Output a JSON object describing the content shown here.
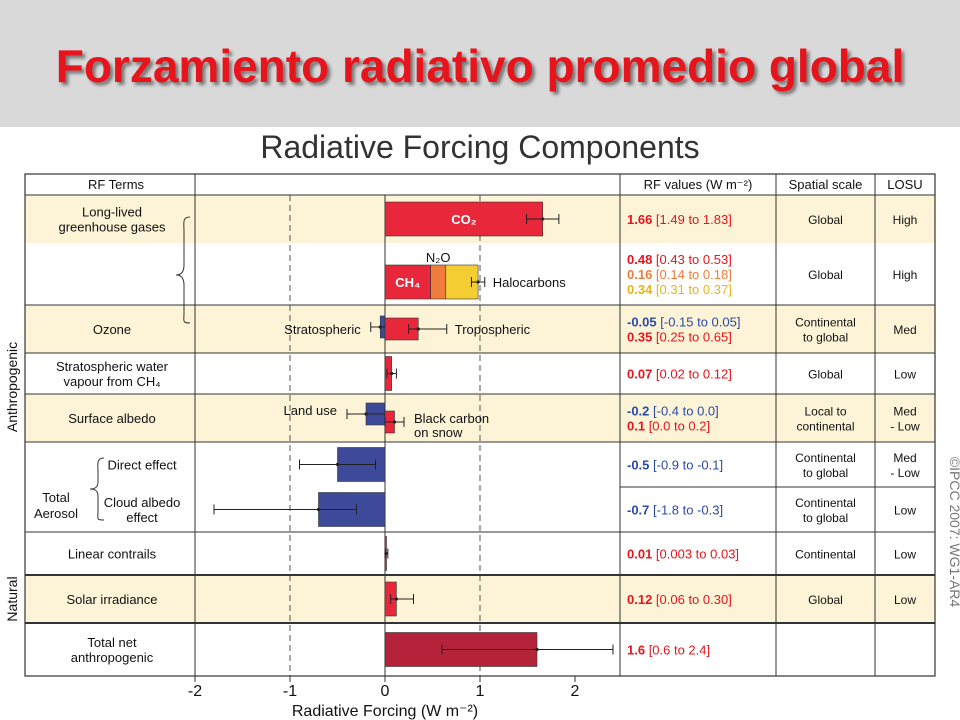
{
  "slide_title": "Forzamiento radiativo promedio global",
  "chart_data": {
    "type": "bar",
    "title": "Radiative Forcing Components",
    "xlabel": "Radiative Forcing (W m⁻²)",
    "xlim": [
      -2,
      2.5
    ],
    "xticks": [
      "-2",
      "-1",
      "0",
      "1",
      "2"
    ],
    "xtick_values": [
      -2,
      -1,
      0,
      1,
      2
    ],
    "vertical_gridlines_at": [
      -1,
      1
    ],
    "column_headers": {
      "terms": "RF Terms",
      "values": "RF values (W m⁻²)",
      "scale": "Spatial scale",
      "losu": "LOSU"
    },
    "group_labels": {
      "anthropogenic": "Anthropogenic",
      "natural": "Natural"
    },
    "credit": "©IPCC  2007: WG1-AR4",
    "rows": [
      {
        "term": [
          "Long-lived",
          "greenhouse gases"
        ],
        "scale": [
          "Global"
        ],
        "losu": [
          "High"
        ],
        "shaded": true
      },
      {
        "term": [],
        "scale": [
          "Global"
        ],
        "losu": [
          "High"
        ],
        "shaded": false
      },
      {
        "term": [
          "Ozone"
        ],
        "scale": [
          "Continental",
          "to global"
        ],
        "losu": [
          "Med"
        ],
        "shaded": true
      },
      {
        "term": [
          "Stratospheric water",
          "vapour from CH₄"
        ],
        "scale": [
          "Global"
        ],
        "losu": [
          "Low"
        ],
        "shaded": false
      },
      {
        "term": [
          "Surface albedo"
        ],
        "scale": [
          "Local to",
          "continental"
        ],
        "losu": [
          "Med",
          "- Low"
        ],
        "shaded": true
      },
      {
        "term": [
          "Direct effect"
        ],
        "scale": [
          "Continental",
          "to global"
        ],
        "losu": [
          "Med",
          "- Low"
        ],
        "shaded": false
      },
      {
        "term": [
          "Cloud albedo",
          "effect"
        ],
        "scale": [
          "Continental",
          "to global"
        ],
        "losu": [
          "Low"
        ],
        "shaded": false
      },
      {
        "term": [
          "Linear contrails"
        ],
        "scale": [
          "Continental"
        ],
        "losu": [
          "Low"
        ],
        "shaded": false
      },
      {
        "term": [
          "Solar irradiance"
        ],
        "scale": [
          "Global"
        ],
        "losu": [
          "Low"
        ],
        "shaded": true
      },
      {
        "term": [
          "Total net",
          "anthropogenic"
        ],
        "scale": [],
        "losu": [],
        "shaded": false
      }
    ],
    "aerosol_label": [
      "Total",
      "Aerosol"
    ],
    "components": [
      {
        "name": "CO₂",
        "row": 0,
        "lane": 0,
        "value": 1.66,
        "low": 1.49,
        "high": 1.83,
        "value_text": "1.66",
        "range_text": "[1.49 to 1.83]",
        "color": "#e8283a",
        "text_color": "#e8141c"
      },
      {
        "name": "CH₄",
        "row": 1,
        "lane": 0,
        "value": 0.48,
        "low": 0.43,
        "high": 0.53,
        "start": 0,
        "value_text": "0.48",
        "range_text": "[0.43 to 0.53]",
        "color": "#e8283a",
        "text_color": "#e8141c"
      },
      {
        "name": "N₂O",
        "row": 1,
        "lane": 0,
        "value": 0.16,
        "low": 0.14,
        "high": 0.18,
        "start": 0.48,
        "value_text": "0.16",
        "range_text": "[0.14 to 0.18]",
        "color": "#ef7c3a",
        "text_color": "#ef7c3a"
      },
      {
        "name": "Halocarbons",
        "row": 1,
        "lane": 0,
        "value": 0.34,
        "low": 0.31,
        "high": 0.37,
        "start": 0.64,
        "error_value": 0.98,
        "error_low": 0.91,
        "error_high": 1.05,
        "value_text": "0.34",
        "range_text": "[0.31 to 0.37]",
        "color": "#f4cd33",
        "text_color": "#e6b417"
      },
      {
        "name": "Stratospheric",
        "row": 2,
        "lane": -1,
        "value": -0.05,
        "low": -0.15,
        "high": 0.05,
        "value_text": "-0.05",
        "range_text": "[-0.15 to 0.05]",
        "color": "#3d4a9a",
        "text_color": "#2b4aa8"
      },
      {
        "name": "Tropospheric",
        "row": 2,
        "lane": 1,
        "value": 0.35,
        "low": 0.25,
        "high": 0.65,
        "value_text": "0.35",
        "range_text": "[0.25 to 0.65]",
        "color": "#e8283a",
        "text_color": "#e8141c"
      },
      {
        "name": "Stratospheric water vapour",
        "row": 3,
        "lane": 0,
        "value": 0.07,
        "low": 0.02,
        "high": 0.12,
        "value_text": "0.07",
        "range_text": "[0.02 to 0.12]",
        "color": "#e8283a",
        "text_color": "#e8141c"
      },
      {
        "name": "Land use",
        "row": 4,
        "lane": -1,
        "value": -0.2,
        "low": -0.4,
        "high": 0.0,
        "value_text": "-0.2",
        "range_text": "[-0.4 to 0.0]",
        "color": "#3d4a9a",
        "text_color": "#2b4aa8"
      },
      {
        "name": "Black carbon on snow",
        "row": 4,
        "lane": 1,
        "value": 0.1,
        "low": 0.0,
        "high": 0.2,
        "value_text": "0.1",
        "range_text": "[0.0 to 0.2]",
        "color": "#e8283a",
        "text_color": "#e8141c"
      },
      {
        "name": "Direct effect",
        "row": 5,
        "lane": 0,
        "value": -0.5,
        "low": -0.9,
        "high": -0.1,
        "value_text": "-0.5",
        "range_text": "[-0.9 to -0.1]",
        "color": "#3d4a9a",
        "text_color": "#2b4aa8"
      },
      {
        "name": "Cloud albedo effect",
        "row": 6,
        "lane": 0,
        "value": -0.7,
        "low": -1.8,
        "high": -0.3,
        "value_text": "-0.7",
        "range_text": "[-1.8 to -0.3]",
        "color": "#3d4a9a",
        "text_color": "#2b4aa8"
      },
      {
        "name": "Linear contrails",
        "row": 7,
        "lane": 0,
        "value": 0.01,
        "low": 0.003,
        "high": 0.03,
        "value_text": "0.01",
        "range_text": "[0.003 to 0.03]",
        "color": "#e8283a",
        "text_color": "#e8141c"
      },
      {
        "name": "Solar irradiance",
        "row": 8,
        "lane": 0,
        "value": 0.12,
        "low": 0.06,
        "high": 0.3,
        "value_text": "0.12",
        "range_text": "[0.06 to 0.30]",
        "color": "#e8283a",
        "text_color": "#e8141c"
      },
      {
        "name": "Total net anthropogenic",
        "row": 9,
        "lane": 0,
        "value": 1.6,
        "low": 0.6,
        "high": 2.4,
        "value_text": "1.6",
        "range_text": "[0.6 to 2.4]",
        "color": "#b5233a",
        "text_color": "#e8141c"
      }
    ],
    "annotations": [
      {
        "text": "CO₂",
        "target": "CO₂",
        "place": "inside",
        "color": "#ffffff"
      },
      {
        "text": "CH₄",
        "target": "CH₄",
        "place": "inside",
        "color": "#ffffff"
      },
      {
        "text": "N₂O",
        "target": "N₂O",
        "place": "above",
        "color": "#111111"
      },
      {
        "text": "Halocarbons",
        "target": "Halocarbons",
        "place": "right",
        "color": "#111111"
      },
      {
        "text": "Stratospheric",
        "target": "Stratospheric",
        "place": "left",
        "color": "#111111"
      },
      {
        "text": "Tropospheric",
        "target": "Tropospheric",
        "place": "right",
        "color": "#111111"
      },
      {
        "text": "Land use",
        "target": "Land use",
        "place": "left",
        "color": "#111111"
      },
      {
        "text": "Black carbon",
        "target": "Black carbon on snow",
        "place": "right-top",
        "color": "#111111"
      },
      {
        "text": "on snow",
        "target": "Black carbon on snow",
        "place": "right-bottom",
        "color": "#111111"
      }
    ]
  }
}
